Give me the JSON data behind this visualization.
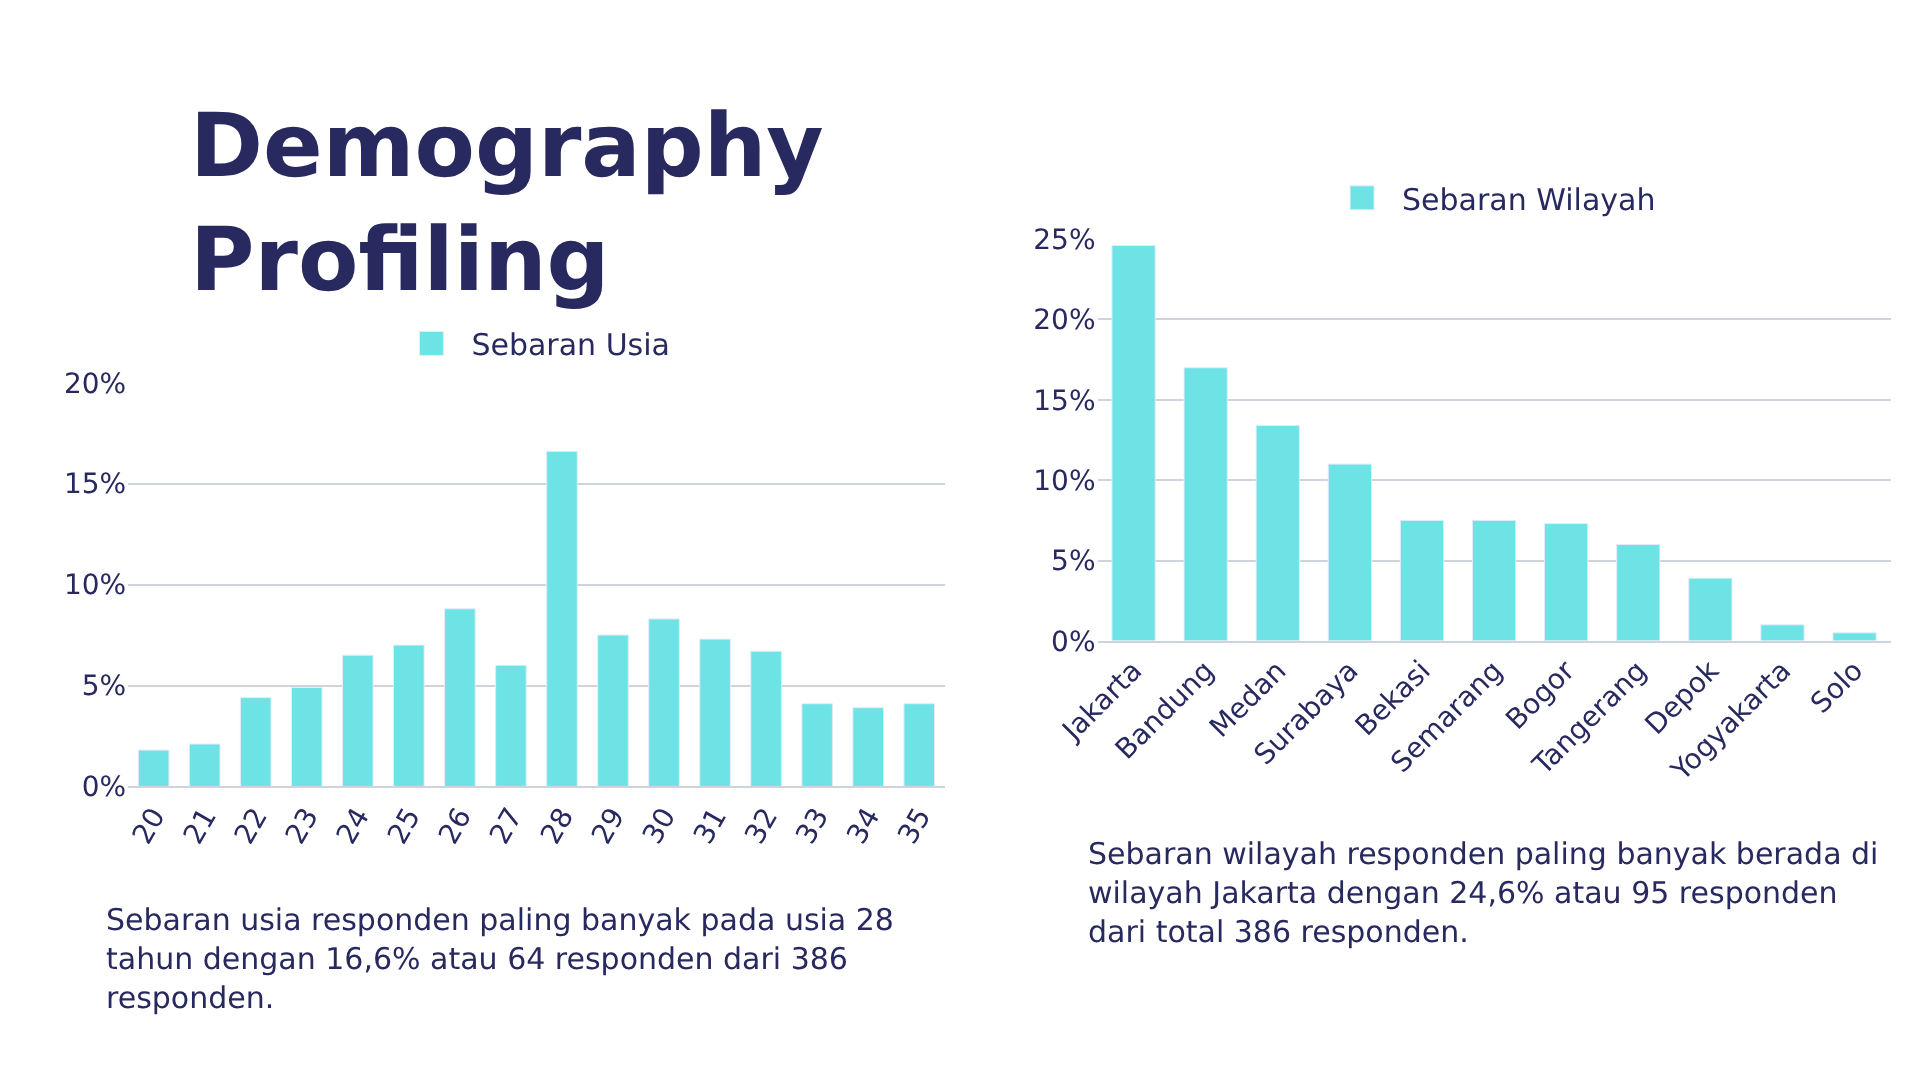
{
  "chart_data": [
    {
      "type": "bar",
      "title": "Demography Profiling",
      "categories": [
        "20",
        "21",
        "22",
        "23",
        "24",
        "25",
        "26",
        "27",
        "28",
        "29",
        "30",
        "31",
        "32",
        "33",
        "34",
        "35"
      ],
      "series": [
        {
          "name": "Sebaran Usia",
          "color": "#6ee3e6",
          "values": [
            1.8,
            2.1,
            4.4,
            4.9,
            6.5,
            7.0,
            8.8,
            6.0,
            16.6,
            7.5,
            8.3,
            7.3,
            6.7,
            4.1,
            3.9,
            4.1
          ]
        }
      ],
      "ylim": [
        0,
        20
      ],
      "yticks": [
        {
          "value": 0,
          "label": "0%"
        },
        {
          "value": 5,
          "label": "5%"
        },
        {
          "value": 10,
          "label": "10%"
        },
        {
          "value": 15,
          "label": "15%"
        },
        {
          "value": 20,
          "label": "20%"
        }
      ],
      "grid": "y",
      "legend": "top",
      "annotations": [
        "Sebaran usia responden paling banyak pada usia 28 tahun dengan 16,6% atau 64 responden dari 386 responden."
      ]
    },
    {
      "type": "bar",
      "categories": [
        "Jakarta",
        "Bandung",
        "Medan",
        "Surabaya",
        "Bekasi",
        "Semarang",
        "Bogor",
        "Tangerang",
        "Depok",
        "Yogyakarta",
        "Solo"
      ],
      "series": [
        {
          "name": "Sebaran Wilayah",
          "color": "#6ee3e6",
          "values": [
            24.6,
            17.0,
            13.4,
            11.0,
            7.5,
            7.5,
            7.3,
            6.0,
            3.9,
            1.0,
            0.5
          ]
        }
      ],
      "ylim": [
        0,
        25
      ],
      "yticks": [
        {
          "value": 0,
          "label": "0%"
        },
        {
          "value": 5,
          "label": "5%"
        },
        {
          "value": 10,
          "label": "10%"
        },
        {
          "value": 15,
          "label": "15%"
        },
        {
          "value": 20,
          "label": "20%"
        },
        {
          "value": 25,
          "label": "25%"
        }
      ],
      "grid": "y",
      "legend": "top",
      "annotations": [
        "Sebaran wilayah responden paling banyak berada di wilayah Jakarta dengan 24,6% atau 95 responden dari total 386 responden."
      ]
    }
  ]
}
